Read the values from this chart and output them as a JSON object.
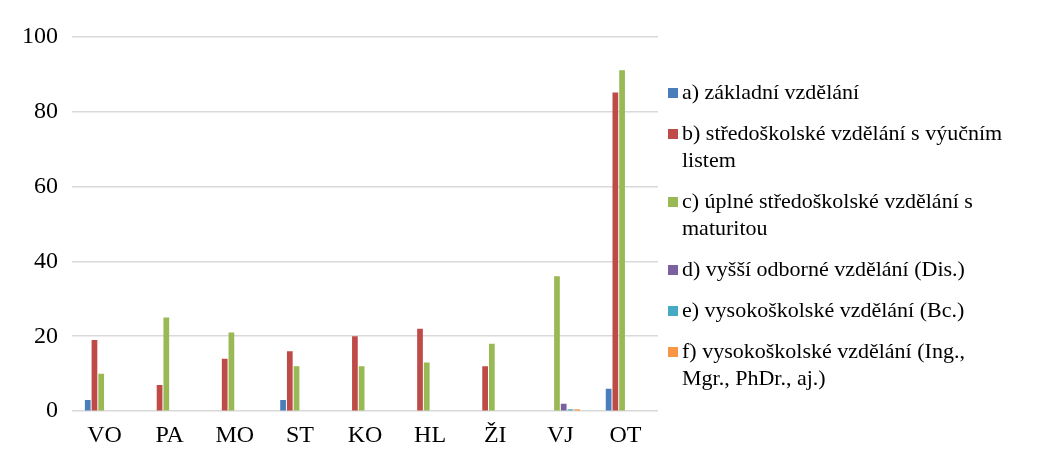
{
  "chart_data": {
    "type": "bar",
    "categories": [
      "VO",
      "PA",
      "MO",
      "ST",
      "KO",
      "HL",
      "ŽI",
      "VJ",
      "OT"
    ],
    "series": [
      {
        "name": "a) základní vzdělání",
        "color": "#4a7ebb",
        "values": [
          3,
          0,
          0,
          3,
          0,
          0,
          0,
          0,
          6
        ]
      },
      {
        "name": "b) středoškolské vzdělání s výučním listem",
        "color": "#be4b48",
        "values": [
          19,
          7,
          14,
          16,
          20,
          22,
          12,
          0,
          85
        ]
      },
      {
        "name": "c) úplné středoškolské vzdělání s maturitou",
        "color": "#98b954",
        "values": [
          10,
          25,
          21,
          12,
          12,
          13,
          18,
          36,
          91
        ]
      },
      {
        "name": "d) vyšší odborné vzdělání (Dis.)",
        "color": "#7d60a0",
        "values": [
          0,
          0,
          0,
          0,
          0,
          0,
          0,
          2,
          0
        ]
      },
      {
        "name": "e) vysokoškolské vzdělání (Bc.)",
        "color": "#46aac5",
        "values": [
          0,
          0,
          0,
          0,
          0,
          0,
          0,
          0.5,
          0
        ]
      },
      {
        "name": "f) vysokoškolské vzdělání (Ing., Mgr., PhDr., aj.)",
        "color": "#f79646",
        "values": [
          0,
          0,
          0,
          0,
          0,
          0,
          0,
          0.5,
          0
        ]
      }
    ],
    "ylim": [
      0,
      100
    ],
    "yticks": [
      0,
      20,
      40,
      60,
      80,
      100
    ],
    "grid": "y",
    "legend": "right"
  }
}
